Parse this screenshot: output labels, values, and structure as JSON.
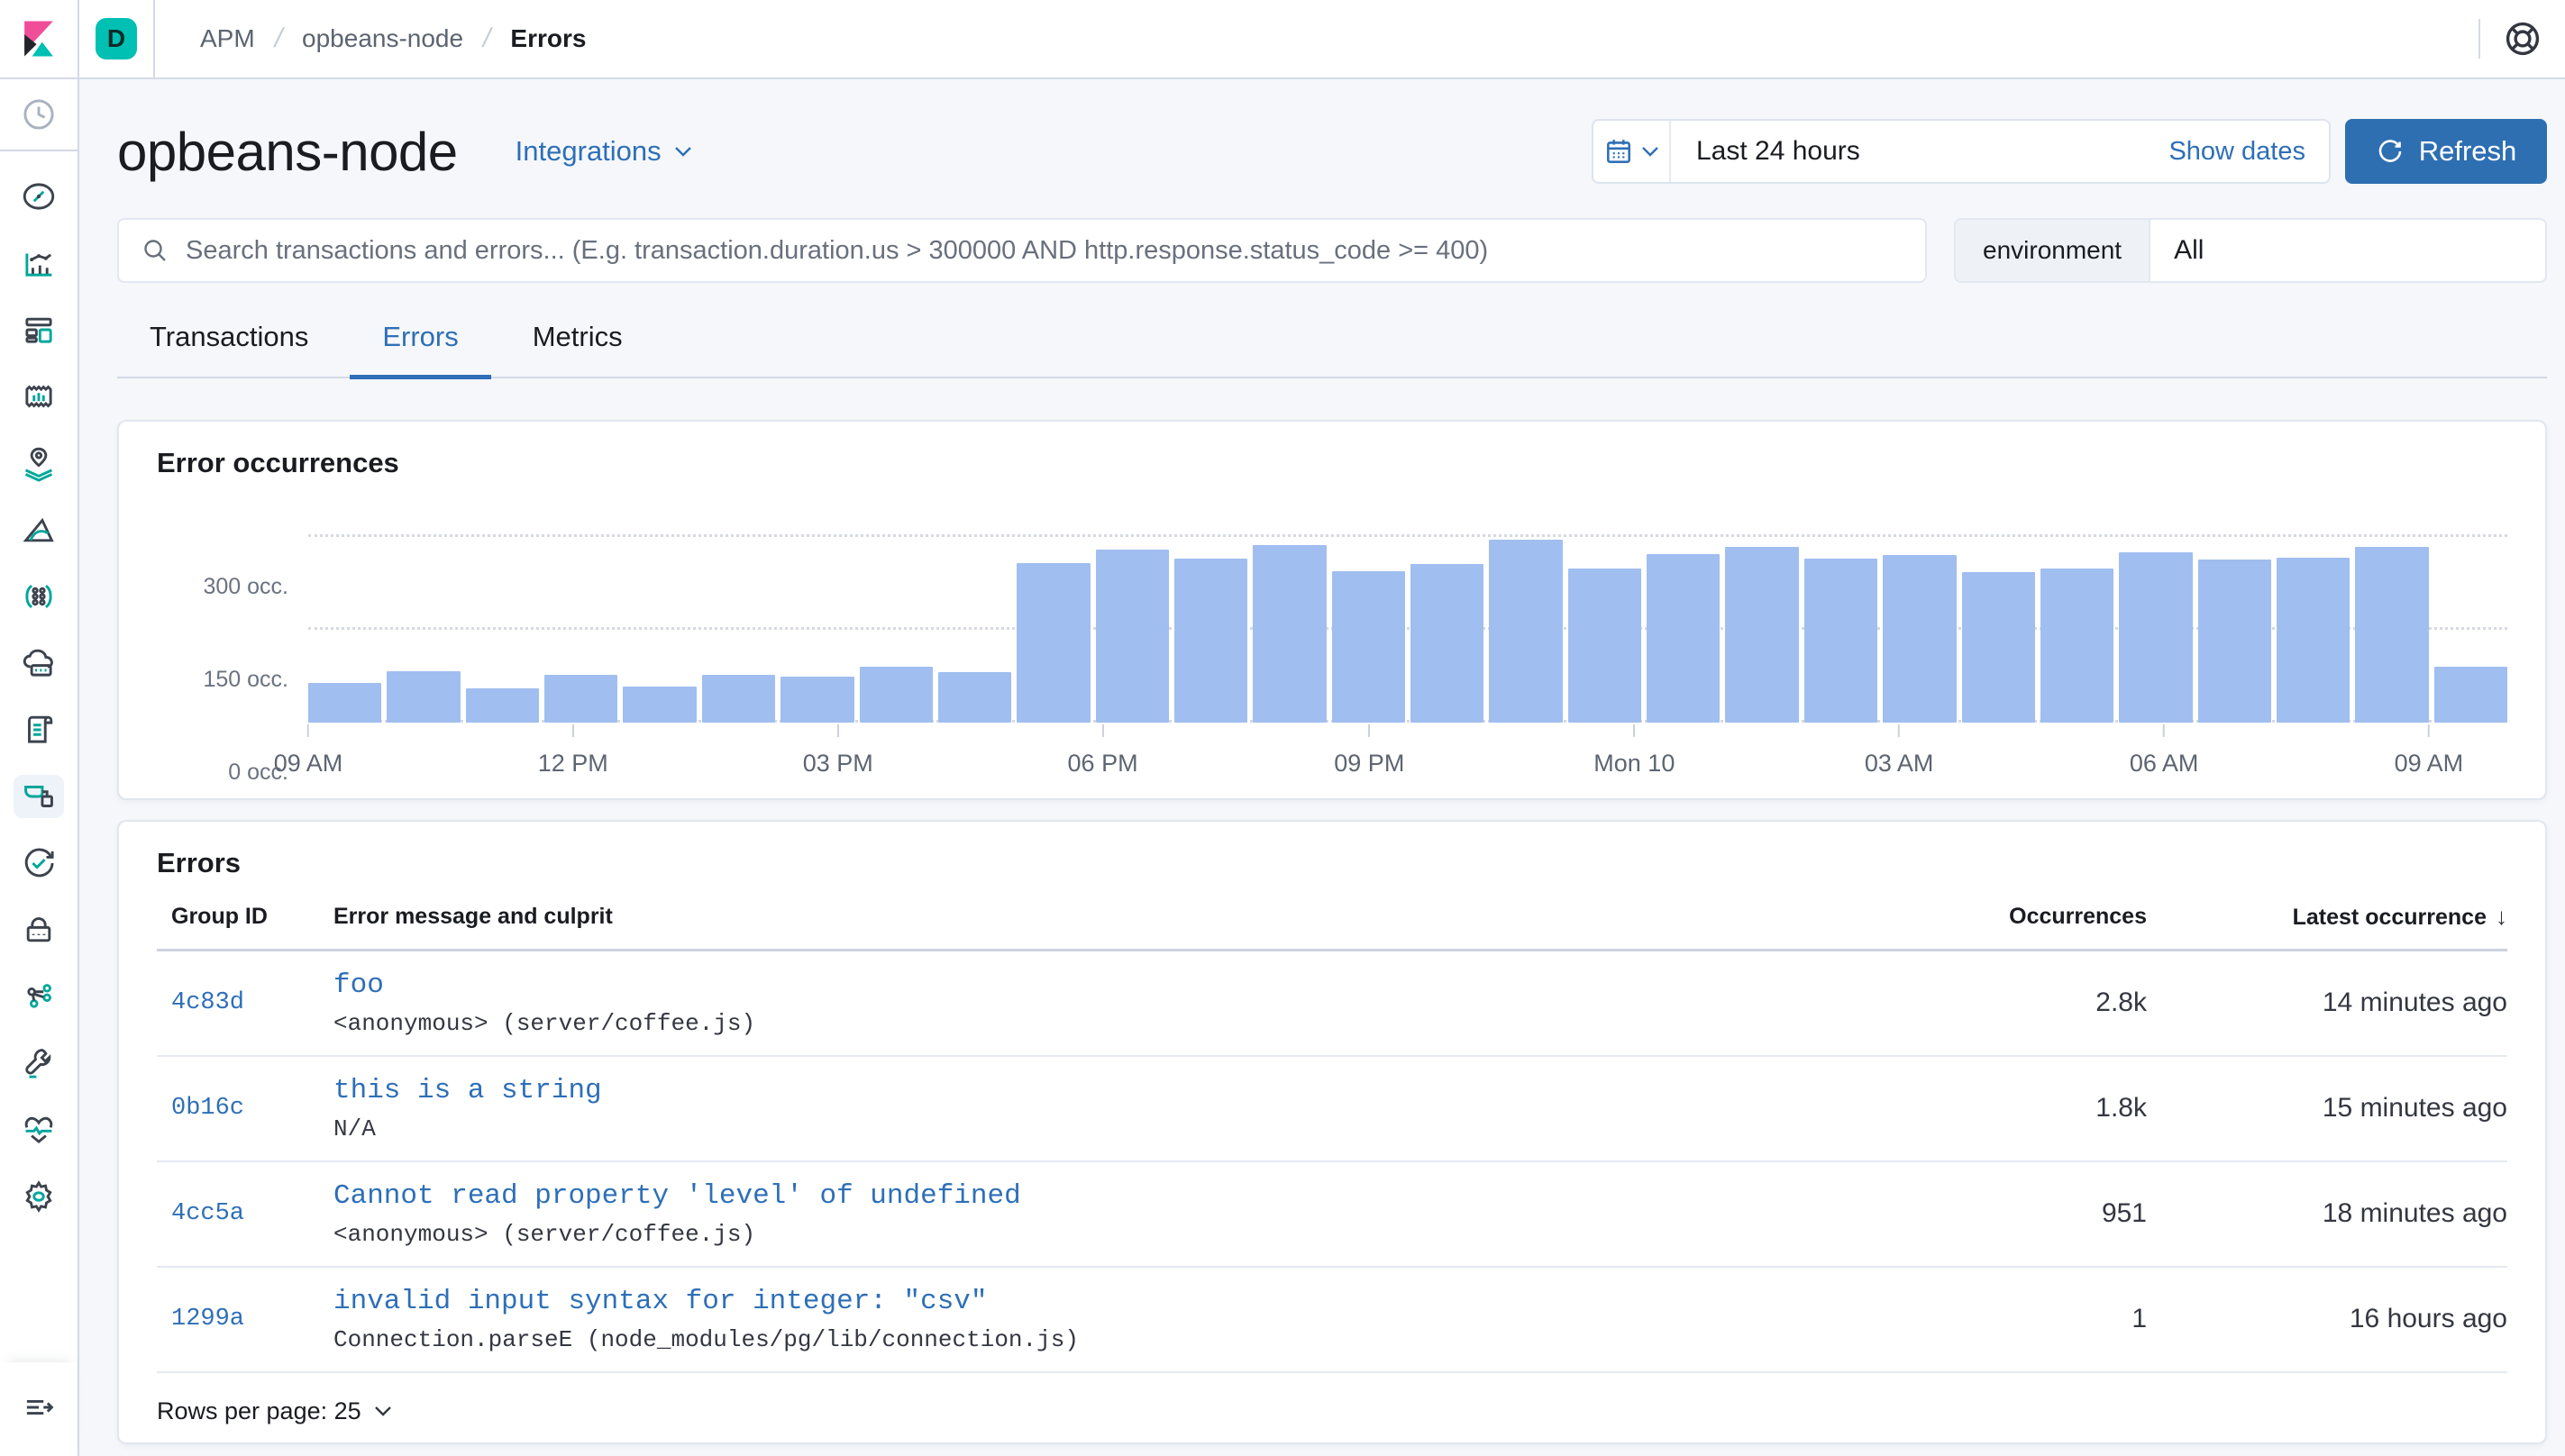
{
  "topbar": {
    "space_initial": "D",
    "breadcrumbs": [
      "APM",
      "opbeans-node",
      "Errors"
    ]
  },
  "header": {
    "title": "opbeans-node",
    "integrations_label": "Integrations",
    "time_range": "Last 24 hours",
    "show_dates_label": "Show dates",
    "refresh_label": "Refresh"
  },
  "search": {
    "placeholder": "Search transactions and errors... (E.g. transaction.duration.us > 300000 AND http.response.status_code >= 400)",
    "environment_label": "environment",
    "environment_value": "All"
  },
  "tabs": {
    "transactions": "Transactions",
    "errors": "Errors",
    "metrics": "Metrics"
  },
  "chart_data": {
    "type": "bar",
    "title": "Error occurrences",
    "values": [
      64,
      82,
      54,
      77,
      57,
      76,
      74,
      89,
      81,
      257,
      279,
      265,
      286,
      244,
      255,
      295,
      249,
      271,
      284,
      265,
      270,
      243,
      248,
      274,
      263,
      266,
      284,
      90
    ],
    "ylim": [
      0,
      300
    ],
    "y_ticks": [
      "0 occ.",
      "150 occ.",
      "300 occ."
    ],
    "x_ticks": [
      {
        "label": "09 AM",
        "pct": 0
      },
      {
        "label": "12 PM",
        "pct": 12.04
      },
      {
        "label": "03 PM",
        "pct": 24.09
      },
      {
        "label": "06 PM",
        "pct": 36.13
      },
      {
        "label": "09 PM",
        "pct": 48.25
      },
      {
        "label": "Mon 10",
        "pct": 60.3
      },
      {
        "label": "03 AM",
        "pct": 72.34
      },
      {
        "label": "06 AM",
        "pct": 84.39
      },
      {
        "label": "09 AM",
        "pct": 96.43
      }
    ],
    "grid": "dotted horizontal",
    "legend": "none"
  },
  "errors_table": {
    "title": "Errors",
    "columns": [
      "Group ID",
      "Error message and culprit",
      "Occurrences",
      "Latest occurrence"
    ],
    "sort_column": "Latest occurrence",
    "sort_direction": "desc",
    "rows": [
      {
        "group_id": "4c83d",
        "message": "foo",
        "culprit": "<anonymous> (server/coffee.js)",
        "occurrences": "2.8k",
        "latest": "14 minutes ago"
      },
      {
        "group_id": "0b16c",
        "message": "this is a string",
        "culprit": "N/A",
        "occurrences": "1.8k",
        "latest": "15 minutes ago"
      },
      {
        "group_id": "4cc5a",
        "message": "Cannot read property 'level' of undefined",
        "culprit": "<anonymous> (server/coffee.js)",
        "occurrences": "951",
        "latest": "18 minutes ago"
      },
      {
        "group_id": "1299a",
        "message": "invalid input syntax for integer: \"csv\"",
        "culprit": "Connection.parseE (node_modules/pg/lib/connection.js)",
        "occurrences": "1",
        "latest": "16 hours ago"
      }
    ],
    "rows_per_page_label": "Rows per page: 25"
  },
  "sidebar": {
    "selected": "apm",
    "items": [
      "recently-viewed",
      "discover",
      "visualize",
      "dashboard",
      "canvas",
      "maps",
      "machine-learning",
      "graph",
      "metrics",
      "logs",
      "apm",
      "uptime",
      "security",
      "fleet",
      "dev-tools",
      "stack-monitoring",
      "management",
      "collapse-menu"
    ]
  },
  "colors": {
    "accent": "#2e6fb7",
    "button_fill": "#2e6fb2",
    "bar_fill": "#a0bef0",
    "space_badge": "#00bfb3"
  }
}
